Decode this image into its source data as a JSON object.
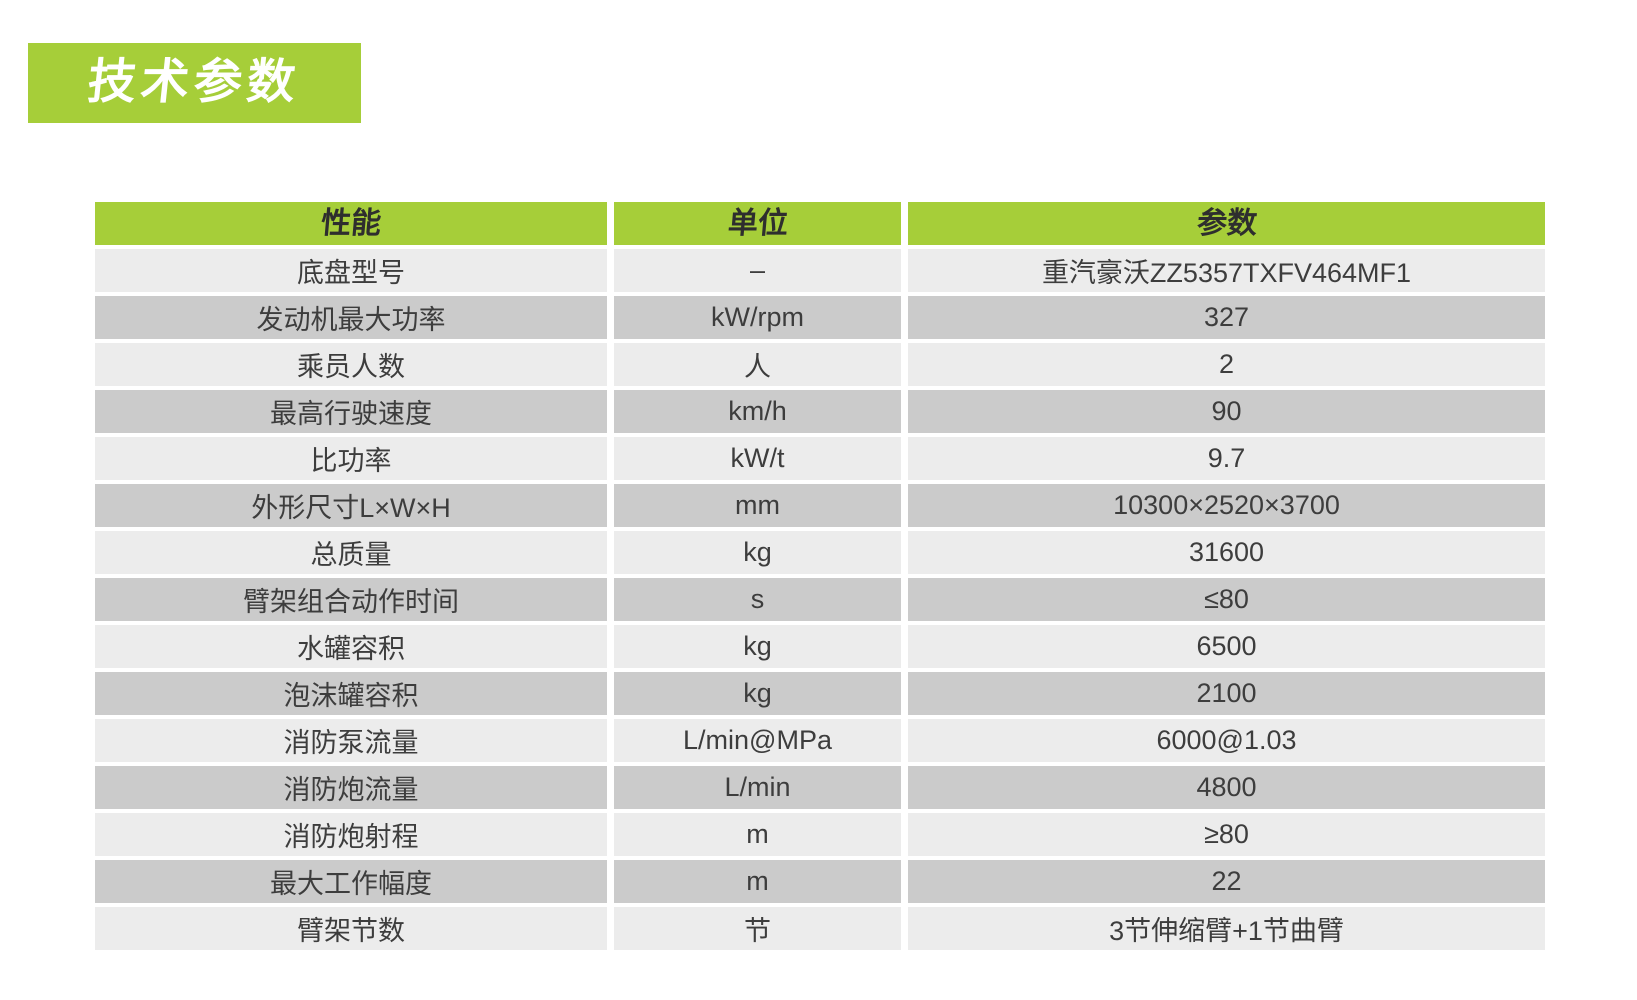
{
  "title": "技术参数",
  "colors": {
    "green": "#a6ce39",
    "row_light": "#ececec",
    "row_dark": "#cbcbcb",
    "header_text": "#2e2e2e",
    "text": "#3d3d3d",
    "title_text": "#ffffff"
  },
  "table": {
    "columns": [
      "性能",
      "单位",
      "参数"
    ],
    "rows": [
      {
        "label": "底盘型号",
        "unit": "–",
        "value": "重汽豪沃ZZ5357TXFV464MF1"
      },
      {
        "label": "发动机最大功率",
        "unit": "kW/rpm",
        "value": "327"
      },
      {
        "label": "乘员人数",
        "unit": "人",
        "value": "2"
      },
      {
        "label": "最高行驶速度",
        "unit": "km/h",
        "value": "90"
      },
      {
        "label": "比功率",
        "unit": "kW/t",
        "value": "9.7"
      },
      {
        "label": "外形尺寸L×W×H",
        "unit": "mm",
        "value": "10300×2520×3700"
      },
      {
        "label": "总质量",
        "unit": "kg",
        "value": "31600"
      },
      {
        "label": "臂架组合动作时间",
        "unit": "s",
        "value": "≤80"
      },
      {
        "label": "水罐容积",
        "unit": "kg",
        "value": "6500"
      },
      {
        "label": "泡沫罐容积",
        "unit": "kg",
        "value": "2100"
      },
      {
        "label": "消防泵流量",
        "unit": "L/min@MPa",
        "value": "6000@1.03"
      },
      {
        "label": "消防炮流量",
        "unit": "L/min",
        "value": "4800"
      },
      {
        "label": "消防炮射程",
        "unit": "m",
        "value": "≥80"
      },
      {
        "label": "最大工作幅度",
        "unit": "m",
        "value": "22"
      },
      {
        "label": "臂架节数",
        "unit": "节",
        "value": "3节伸缩臂+1节曲臂"
      }
    ]
  }
}
